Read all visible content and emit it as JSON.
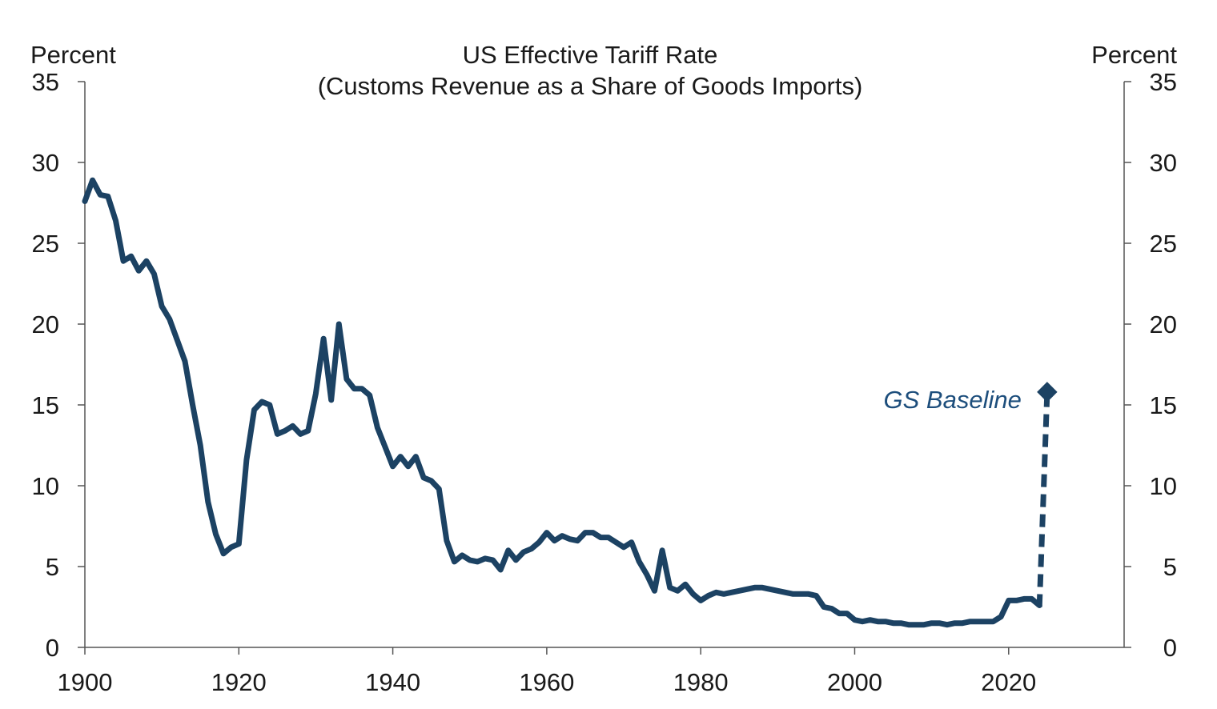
{
  "chart_data": {
    "type": "line",
    "title": "US Effective  Tariff  Rate",
    "subtitle": "(Customs Revenue  as a Share of Goods Imports)",
    "left_unit": "Percent",
    "right_unit": "Percent",
    "xlim": [
      1900,
      2035
    ],
    "ylim": [
      0,
      35
    ],
    "x_ticks": [
      1900,
      1920,
      1940,
      1960,
      1980,
      2000,
      2020
    ],
    "y_ticks": [
      0,
      5,
      10,
      15,
      20,
      25,
      30,
      35
    ],
    "grid": false,
    "series": [
      {
        "style": "solid",
        "color": "#1c4263",
        "x": [
          1900,
          1901,
          1902,
          1903,
          1904,
          1905,
          1906,
          1907,
          1908,
          1909,
          1910,
          1911,
          1912,
          1913,
          1914,
          1915,
          1916,
          1917,
          1918,
          1919,
          1920,
          1921,
          1922,
          1923,
          1924,
          1925,
          1926,
          1927,
          1928,
          1929,
          1930,
          1931,
          1932,
          1933,
          1934,
          1935,
          1936,
          1937,
          1938,
          1939,
          1940,
          1941,
          1942,
          1943,
          1944,
          1945,
          1946,
          1947,
          1948,
          1949,
          1950,
          1951,
          1952,
          1953,
          1954,
          1955,
          1956,
          1957,
          1958,
          1959,
          1960,
          1961,
          1962,
          1963,
          1964,
          1965,
          1966,
          1967,
          1968,
          1969,
          1970,
          1971,
          1972,
          1973,
          1974,
          1975,
          1976,
          1977,
          1978,
          1979,
          1980,
          1981,
          1982,
          1983,
          1984,
          1985,
          1986,
          1987,
          1988,
          1989,
          1990,
          1991,
          1992,
          1993,
          1994,
          1995,
          1996,
          1997,
          1998,
          1999,
          2000,
          2001,
          2002,
          2003,
          2004,
          2005,
          2006,
          2007,
          2008,
          2009,
          2010,
          2011,
          2012,
          2013,
          2014,
          2015,
          2016,
          2017,
          2018,
          2019,
          2020,
          2021,
          2022,
          2023,
          2024
        ],
        "y": [
          27.6,
          28.9,
          28.0,
          27.9,
          26.4,
          23.9,
          24.2,
          23.3,
          23.9,
          23.1,
          21.1,
          20.3,
          19.0,
          17.7,
          15.0,
          12.5,
          9.0,
          7.0,
          5.8,
          6.2,
          6.4,
          11.6,
          14.7,
          15.2,
          15.0,
          13.2,
          13.4,
          13.7,
          13.2,
          13.4,
          15.7,
          19.1,
          15.3,
          20.0,
          16.6,
          16.0,
          16.0,
          15.6,
          13.6,
          12.4,
          11.2,
          11.8,
          11.2,
          11.8,
          10.5,
          10.3,
          9.8,
          6.6,
          5.3,
          5.7,
          5.4,
          5.3,
          5.5,
          5.4,
          4.8,
          6.0,
          5.4,
          5.9,
          6.1,
          6.5,
          7.1,
          6.6,
          6.9,
          6.7,
          6.6,
          7.1,
          7.1,
          6.8,
          6.8,
          6.5,
          6.2,
          6.5,
          5.3,
          4.5,
          3.5,
          6.0,
          3.7,
          3.5,
          3.9,
          3.3,
          2.9,
          3.2,
          3.4,
          3.3,
          3.4,
          3.5,
          3.6,
          3.7,
          3.7,
          3.6,
          3.5,
          3.4,
          3.3,
          3.3,
          3.3,
          3.2,
          2.5,
          2.4,
          2.1,
          2.1,
          1.7,
          1.6,
          1.7,
          1.6,
          1.6,
          1.5,
          1.5,
          1.4,
          1.4,
          1.4,
          1.5,
          1.5,
          1.4,
          1.5,
          1.5,
          1.6,
          1.6,
          1.6,
          1.6,
          1.9,
          2.9,
          2.9,
          3.0,
          3.0,
          2.6
        ]
      },
      {
        "name": "GS Baseline",
        "style": "dashed",
        "color": "#1c4263",
        "x": [
          2024,
          2025
        ],
        "y": [
          2.5,
          15.8
        ],
        "endpoint_marker": "diamond"
      }
    ],
    "annotations": [
      {
        "text": "GS Baseline",
        "color": "#1d4e7c",
        "style": "italic"
      }
    ]
  }
}
